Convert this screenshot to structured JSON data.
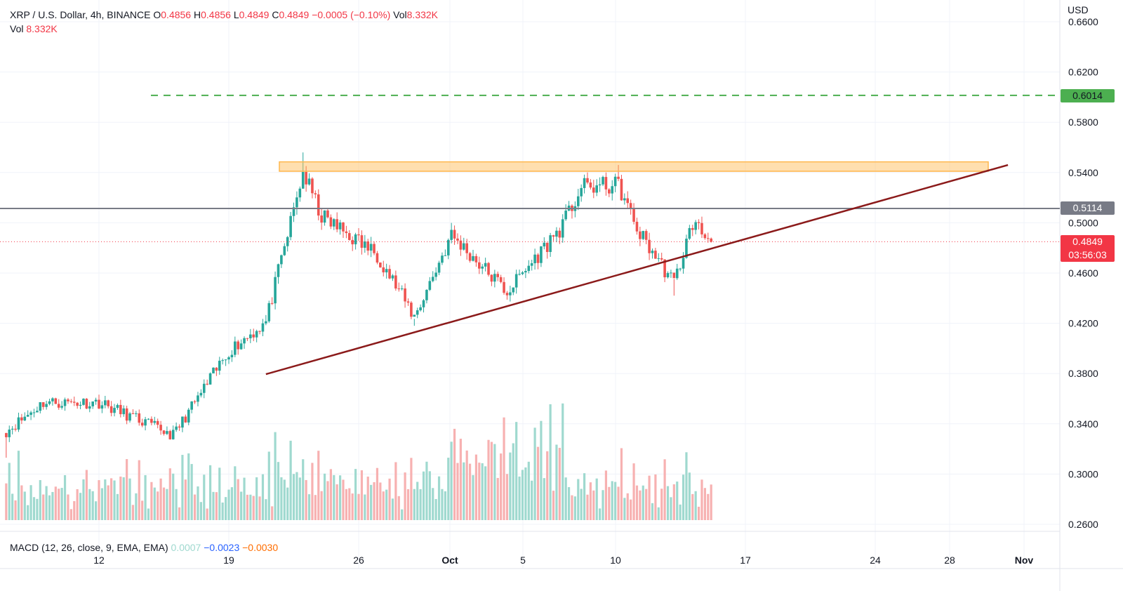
{
  "header": {
    "symbol": "XRP / U.S. Dollar, 4h, BINANCE",
    "open_label": "O",
    "open": "0.4856",
    "high_label": "H",
    "high": "0.4856",
    "low_label": "L",
    "low": "0.4849",
    "close_label": "C",
    "close": "0.4849",
    "change": "−0.0005 (−0.10%)",
    "vol_label": "Vol",
    "vol": "8.332K"
  },
  "volume_legend": {
    "label": "Vol",
    "value": "8.332K"
  },
  "macd_legend": {
    "label": "MACD (12, 26, close, 9, EMA, EMA)",
    "histogram": "0.0007",
    "macd": "−0.0023",
    "signal": "−0.0030"
  },
  "price_axis": {
    "currency": "USD",
    "levels": [
      {
        "name": "resistance-target",
        "value": "0.6014",
        "color": "#4caf50"
      },
      {
        "name": "horizontal-level",
        "value": "0.5114",
        "color": "#787b86"
      },
      {
        "name": "last-price",
        "value": "0.4849",
        "countdown": "03:56:03",
        "color": "#f23645"
      }
    ]
  },
  "colors": {
    "up": "#26a69a",
    "down": "#ef5350",
    "trendline": "#8b1a1a",
    "zone": "#ffb74d"
  },
  "chart_data": {
    "type": "candlestick",
    "symbol": "XRP / U.S. Dollar",
    "interval": "4h",
    "exchange": "BINANCE",
    "y_ticks": [
      0.66,
      0.62,
      0.58,
      0.54,
      0.5,
      0.46,
      0.42,
      0.38,
      0.34,
      0.3,
      0.26
    ],
    "x_ticks": [
      "12",
      "19",
      "26",
      "Oct",
      "5",
      "10",
      "17",
      "24",
      "28",
      "Nov"
    ],
    "ylim": [
      0.256,
      0.663
    ],
    "grid": true,
    "annotations": {
      "green_dashed_level": 0.6014,
      "grey_horizontal_level": 0.5114,
      "last_price_line": 0.4849,
      "resistance_zone": {
        "from": 0.541,
        "to": 0.5485
      },
      "ascending_trendline": [
        {
          "x": "Sep 21",
          "y": 0.3795
        },
        {
          "x": "Oct 31",
          "y": 0.546
        }
      ]
    },
    "key_points": [
      {
        "x": "Sep 7",
        "close": 0.334
      },
      {
        "x": "Sep 9",
        "close": 0.357
      },
      {
        "x": "Sep 12",
        "close": 0.357
      },
      {
        "x": "Sep 16",
        "close": 0.331
      },
      {
        "x": "Sep 19",
        "close": 0.398
      },
      {
        "x": "Sep 21",
        "close": 0.421
      },
      {
        "x": "Sep 23",
        "close": 0.54
      },
      {
        "x": "Sep 24",
        "close": 0.505
      },
      {
        "x": "Sep 27",
        "close": 0.475
      },
      {
        "x": "Sep 29",
        "close": 0.425
      },
      {
        "x": "Oct 1",
        "close": 0.49
      },
      {
        "x": "Oct 4",
        "close": 0.445
      },
      {
        "x": "Oct 7",
        "close": 0.498
      },
      {
        "x": "Oct 8",
        "close": 0.528
      },
      {
        "x": "Oct 10",
        "close": 0.53
      },
      {
        "x": "Oct 11",
        "close": 0.495
      },
      {
        "x": "Oct 13",
        "close": 0.452
      },
      {
        "x": "Oct 14",
        "close": 0.5
      },
      {
        "x": "Oct 15",
        "close": 0.4849
      }
    ]
  }
}
